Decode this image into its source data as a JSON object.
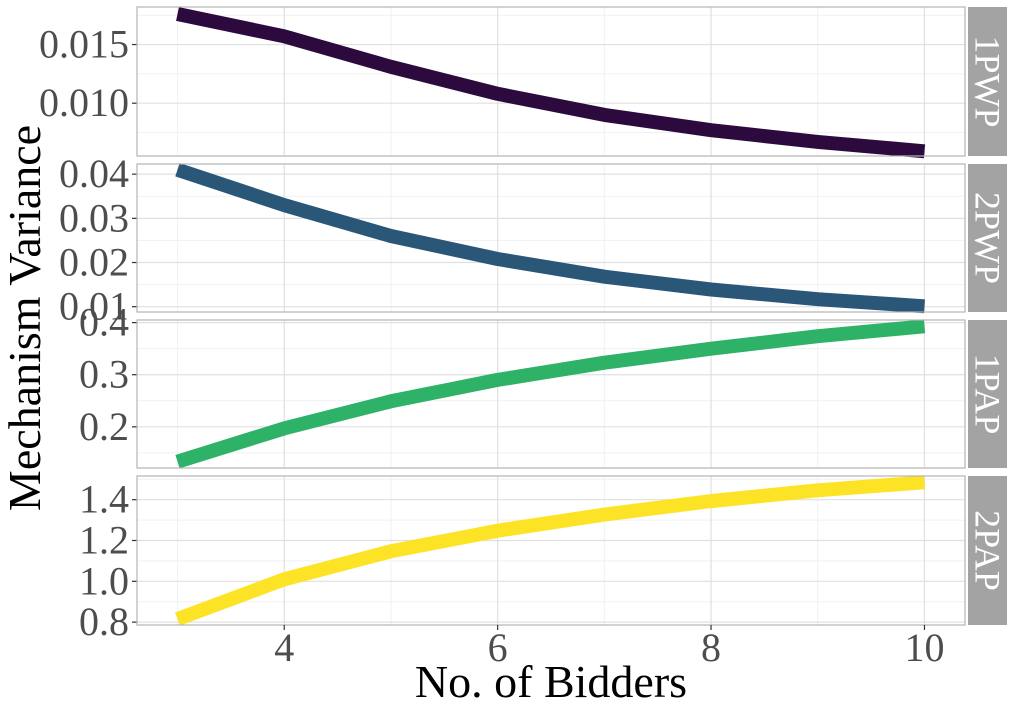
{
  "chart_data": {
    "type": "line",
    "xlabel": "No. of Bidders",
    "ylabel": "Mechanism Variance",
    "x": [
      3,
      4,
      5,
      6,
      7,
      8,
      9,
      10
    ],
    "xlim": [
      2.62,
      10.38
    ],
    "x_ticks": [
      4,
      6,
      8,
      10
    ],
    "grid": true,
    "legend": "none",
    "panels": [
      {
        "strip": "1PWP",
        "color": "#2d0a3e",
        "values": [
          0.0176,
          0.0157,
          0.0131,
          0.0108,
          0.009,
          0.0077,
          0.0067,
          0.0059
        ],
        "ylim": [
          0.0055,
          0.0182
        ],
        "y_ticks": [
          0.01,
          0.015
        ],
        "y_tick_labels": [
          "0.010",
          "0.015"
        ]
      },
      {
        "strip": "2PWP",
        "color": "#2a5677",
        "values": [
          0.041,
          0.033,
          0.026,
          0.0208,
          0.0168,
          0.0139,
          0.0117,
          0.0101
        ],
        "ylim": [
          0.0088,
          0.0423
        ],
        "y_ticks": [
          0.01,
          0.02,
          0.03,
          0.04
        ],
        "y_tick_labels": [
          "0.01",
          "0.02",
          "0.03",
          "0.04"
        ]
      },
      {
        "strip": "1PAP",
        "color": "#2db267",
        "values": [
          0.133,
          0.197,
          0.249,
          0.29,
          0.323,
          0.35,
          0.374,
          0.393
        ],
        "ylim": [
          0.121,
          0.405
        ],
        "y_ticks": [
          0.2,
          0.3,
          0.4
        ],
        "y_tick_labels": [
          "0.2",
          "0.3",
          "0.4"
        ]
      },
      {
        "strip": "2PAP",
        "color": "#fde325",
        "values": [
          0.815,
          1.01,
          1.147,
          1.248,
          1.327,
          1.393,
          1.446,
          1.485
        ],
        "ylim": [
          0.786,
          1.516
        ],
        "y_ticks": [
          0.8,
          1.0,
          1.2,
          1.4
        ],
        "y_tick_labels": [
          "0.8",
          "1.0",
          "1.2",
          "1.4"
        ]
      }
    ]
  }
}
